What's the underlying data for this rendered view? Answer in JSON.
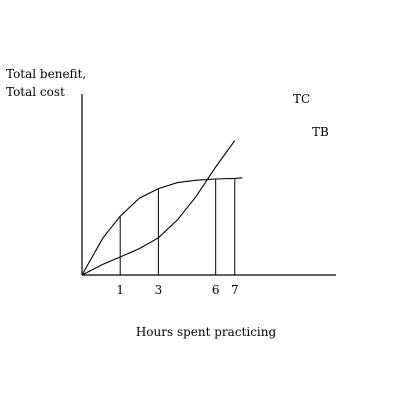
{
  "chart_data": {
    "type": "line",
    "title": "",
    "ylabel_lines": [
      "Total benefit,",
      "Total cost"
    ],
    "xlabel": "Hours spent practicing",
    "x_ticks": [
      1,
      3,
      6,
      7
    ],
    "xlim": [
      -1,
      12.3
    ],
    "ylim": [
      0,
      10
    ],
    "grid": false,
    "series": [
      {
        "name": "TB",
        "x": [
          -1,
          0.1,
          1,
          2,
          3,
          4,
          5,
          6,
          7,
          7.4
        ],
        "y": [
          0,
          3.1,
          4.9,
          6.4,
          7.2,
          7.7,
          7.9,
          8.0,
          8.05,
          8.1
        ]
      },
      {
        "name": "TC",
        "x": [
          -1,
          0.1,
          1,
          2,
          3,
          4,
          5,
          6,
          7
        ],
        "y": [
          0,
          0.9,
          1.5,
          2.2,
          3.1,
          4.6,
          6.6,
          9.0,
          11.2
        ]
      }
    ],
    "drop_lines": [
      {
        "x": 1,
        "y": 4.9
      },
      {
        "x": 3,
        "y": 7.2
      },
      {
        "x": 6,
        "y": 8.0
      },
      {
        "x": 7,
        "y": 8.05
      }
    ]
  }
}
